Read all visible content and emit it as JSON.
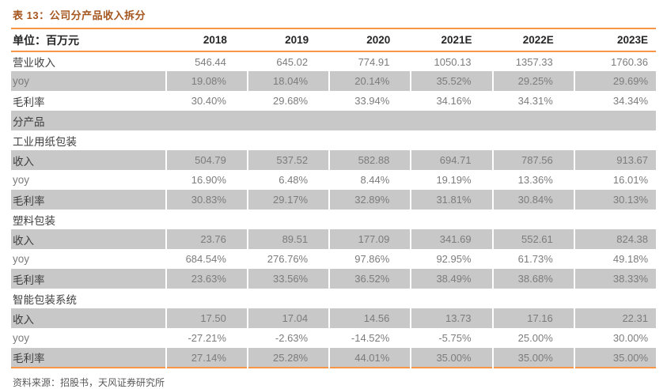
{
  "colors": {
    "accent_rule": "#F79646",
    "title_text": "#A5561E",
    "row_stripe": "#C8C8C8",
    "label_text": "#3F3F3F",
    "value_text": "#7C7C7C"
  },
  "chart_data": {
    "type": "table",
    "title": "表 13：公司分产品收入拆分",
    "unit_header": "单位：百万元",
    "columns": [
      "2018",
      "2019",
      "2020",
      "2021E",
      "2022E",
      "2023E"
    ],
    "rows": [
      {
        "label": "营业收入",
        "kind": "data",
        "muted": false,
        "values": [
          "546.44",
          "645.02",
          "774.91",
          "1050.13",
          "1357.33",
          "1760.36"
        ]
      },
      {
        "label": "yoy",
        "kind": "data",
        "muted": true,
        "values": [
          "19.08%",
          "18.04%",
          "20.14%",
          "35.52%",
          "29.25%",
          "29.69%"
        ]
      },
      {
        "label": "毛利率",
        "kind": "data",
        "muted": false,
        "values": [
          "30.40%",
          "29.68%",
          "33.94%",
          "34.16%",
          "34.31%",
          "34.34%"
        ]
      },
      {
        "label": "分产品",
        "kind": "section",
        "values": []
      },
      {
        "label": "工业用纸包装",
        "kind": "section",
        "values": []
      },
      {
        "label": "收入",
        "kind": "data",
        "muted": false,
        "values": [
          "504.79",
          "537.52",
          "582.88",
          "694.71",
          "787.56",
          "913.67"
        ]
      },
      {
        "label": "yoy",
        "kind": "data",
        "muted": true,
        "values": [
          "16.90%",
          "6.48%",
          "8.44%",
          "19.19%",
          "13.36%",
          "16.01%"
        ]
      },
      {
        "label": "毛利率",
        "kind": "data",
        "muted": false,
        "values": [
          "30.83%",
          "29.17%",
          "32.89%",
          "31.81%",
          "30.84%",
          "30.13%"
        ]
      },
      {
        "label": "塑料包装",
        "kind": "section",
        "values": []
      },
      {
        "label": "收入",
        "kind": "data",
        "muted": false,
        "values": [
          "23.76",
          "89.51",
          "177.09",
          "341.69",
          "552.61",
          "824.38"
        ]
      },
      {
        "label": "yoy",
        "kind": "data",
        "muted": true,
        "values": [
          "684.54%",
          "276.76%",
          "97.86%",
          "92.95%",
          "61.73%",
          "49.18%"
        ]
      },
      {
        "label": "毛利率",
        "kind": "data",
        "muted": false,
        "values": [
          "23.63%",
          "33.56%",
          "36.52%",
          "38.49%",
          "38.68%",
          "38.33%"
        ]
      },
      {
        "label": "智能包装系统",
        "kind": "section",
        "values": []
      },
      {
        "label": "收入",
        "kind": "data",
        "muted": false,
        "values": [
          "17.50",
          "17.04",
          "14.56",
          "13.73",
          "17.16",
          "22.31"
        ]
      },
      {
        "label": "yoy",
        "kind": "data",
        "muted": true,
        "values": [
          "-27.21%",
          "-2.63%",
          "-14.52%",
          "-5.75%",
          "25.00%",
          "30.00%"
        ]
      },
      {
        "label": "毛利率",
        "kind": "data",
        "muted": false,
        "values": [
          "27.14%",
          "25.28%",
          "44.01%",
          "35.00%",
          "35.00%",
          "35.00%"
        ]
      }
    ],
    "source_note": "资料来源：招股书，天风证券研究所"
  }
}
